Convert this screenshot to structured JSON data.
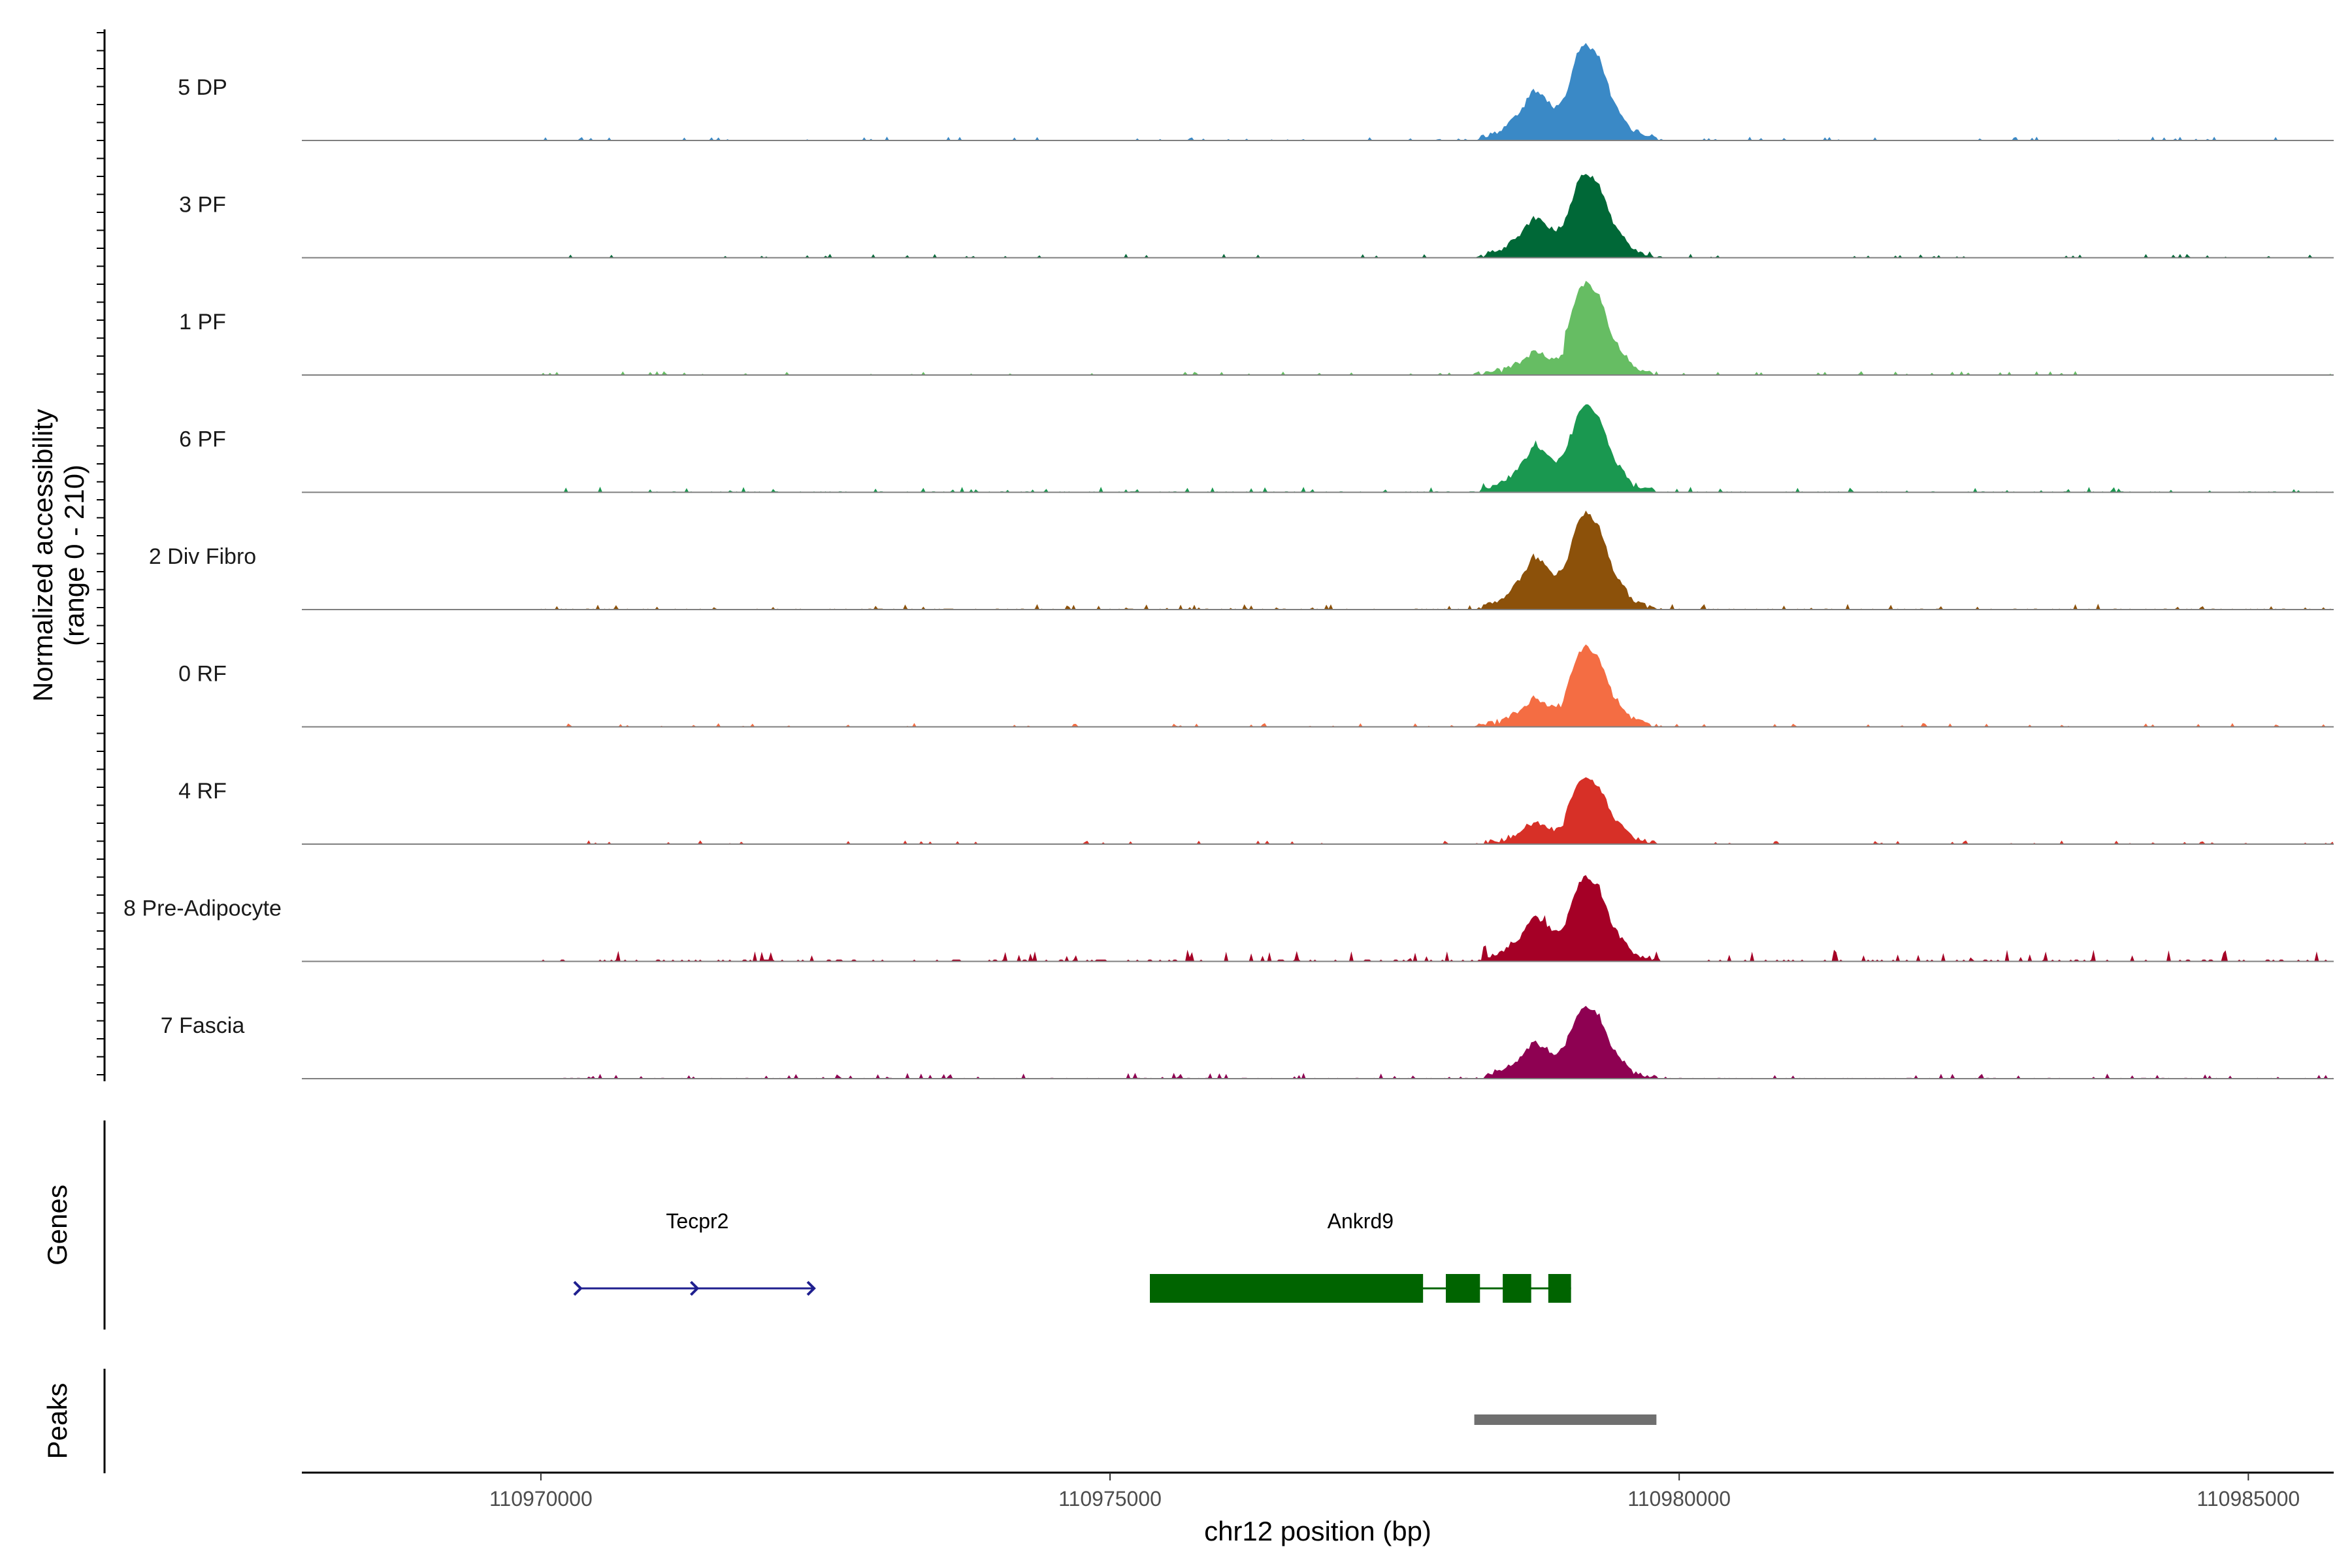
{
  "chart_data": {
    "type": "area",
    "title": "",
    "xlabel": "chr12 position (bp)",
    "ylabel": "Normalized accessibility\n(range 0 - 210)",
    "ylabel_lines": [
      "Normalized accessibility",
      "(range 0 - 210)"
    ],
    "y_range": [
      0,
      210
    ],
    "xlim": [
      110967900,
      110985750
    ],
    "x_ticks": [
      110970000,
      110975000,
      110980000,
      110985000
    ],
    "x_tick_labels": [
      "110970000",
      "110975000",
      "110980000",
      "110985000"
    ],
    "grid": false,
    "peak_profile": {
      "x": [
        110978200,
        110978450,
        110978600,
        110978720,
        110978800,
        110978900,
        110979000,
        110979120,
        110979180,
        110979300,
        110979420,
        110979600,
        110979850
      ],
      "shape": [
        0.0,
        0.12,
        0.3,
        0.55,
        0.48,
        0.35,
        0.45,
        0.92,
        1.0,
        0.85,
        0.4,
        0.08,
        0.0
      ]
    },
    "series": [
      {
        "name": "5 DP",
        "color": "#3a89c6",
        "max": 210,
        "side_peak": 0.52,
        "main_peak": 1.0,
        "background": 0.02,
        "noise_seed": 1
      },
      {
        "name": "3 PF",
        "color": "#006837",
        "max": 210,
        "side_peak": 0.42,
        "main_peak": 0.88,
        "background": 0.02,
        "noise_seed": 2
      },
      {
        "name": "1 PF",
        "color": "#66bd63",
        "max": 210,
        "side_peak": 0.24,
        "main_peak": 0.95,
        "background": 0.02,
        "noise_seed": 3
      },
      {
        "name": "6 PF",
        "color": "#1a9850",
        "max": 210,
        "side_peak": 0.47,
        "main_peak": 0.9,
        "background": 0.03,
        "noise_seed": 4
      },
      {
        "name": "2 Div Fibro",
        "color": "#8c510a",
        "max": 210,
        "side_peak": 0.55,
        "main_peak": 1.0,
        "background": 0.03,
        "noise_seed": 5
      },
      {
        "name": "0 RF",
        "color": "#f46d43",
        "max": 210,
        "side_peak": 0.3,
        "main_peak": 0.82,
        "background": 0.02,
        "noise_seed": 6
      },
      {
        "name": "4 RF",
        "color": "#d73027",
        "max": 210,
        "side_peak": 0.22,
        "main_peak": 0.7,
        "background": 0.02,
        "noise_seed": 7
      },
      {
        "name": "8 Pre-Adipocyte",
        "color": "#a50026",
        "max": 210,
        "side_peak": 0.46,
        "main_peak": 0.88,
        "background": 0.06,
        "noise_seed": 8
      },
      {
        "name": "7 Fascia",
        "color": "#8e0152",
        "max": 210,
        "side_peak": 0.38,
        "main_peak": 0.75,
        "background": 0.03,
        "noise_seed": 9
      }
    ],
    "genes": [
      {
        "name": "Tecpr2",
        "strand": "+",
        "start": 110970350,
        "end": 110972400,
        "color": "#1f1f8f",
        "exons": []
      },
      {
        "name": "Ankrd9",
        "strand": "-",
        "start": 110975350,
        "end": 110979050,
        "color": "#006400",
        "exons": [
          [
            110975350,
            110977750
          ],
          [
            110977950,
            110978250
          ],
          [
            110978450,
            110978700
          ],
          [
            110978850,
            110979050
          ]
        ]
      }
    ],
    "peaks": [
      {
        "start": 110978200,
        "end": 110979800,
        "color": "#6f6f6f"
      }
    ],
    "panel_labels": {
      "genes": "Genes",
      "peaks": "Peaks"
    }
  }
}
